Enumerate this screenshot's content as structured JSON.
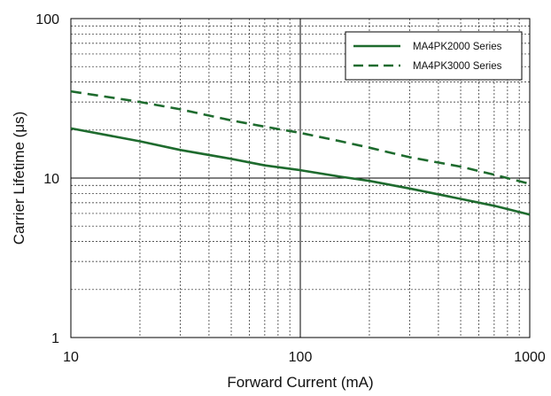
{
  "chart_data": {
    "type": "line",
    "xlabel": "Forward Current (mA)",
    "ylabel": "Carrier Lifetime (μs)",
    "x_scale": "log",
    "y_scale": "log",
    "xlim": [
      10,
      1000
    ],
    "ylim": [
      1,
      100
    ],
    "x_tick_labels": [
      "10",
      "100",
      "1000"
    ],
    "y_tick_labels": [
      "1",
      "10",
      "100"
    ],
    "grid": true,
    "legend_position": "top-right",
    "series_color": "#1e6b2e",
    "series": [
      {
        "name": "MA4PK2000 Series",
        "style": "solid",
        "x": [
          10,
          20,
          30,
          50,
          70,
          100,
          150,
          200,
          300,
          500,
          700,
          1000
        ],
        "y": [
          20.5,
          17,
          15,
          13.2,
          12,
          11.2,
          10.2,
          9.6,
          8.6,
          7.4,
          6.7,
          5.9
        ]
      },
      {
        "name": "MA4PK3000 Series",
        "style": "dashed",
        "x": [
          10,
          20,
          30,
          50,
          70,
          100,
          150,
          200,
          300,
          500,
          700,
          1000
        ],
        "y": [
          35,
          30,
          27,
          23,
          21,
          19.2,
          17,
          15.5,
          13.5,
          11.8,
          10.5,
          9.2
        ]
      }
    ]
  }
}
